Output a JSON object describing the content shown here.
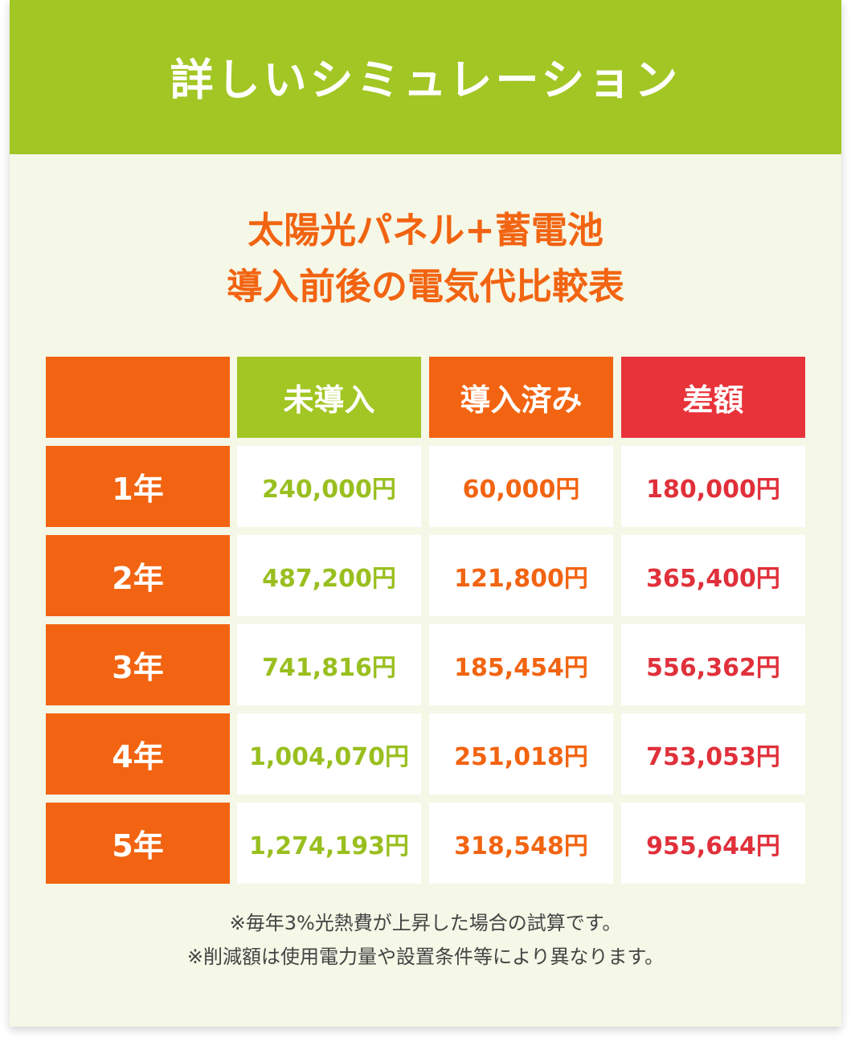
{
  "header": {
    "title": "詳しいシミュレーション"
  },
  "subtitle": {
    "line1": "太陽光パネル+蓄電池",
    "line2": "導入前後の電気代比較表"
  },
  "table": {
    "columns": [
      "",
      "未導入",
      "導入済み",
      "差額"
    ],
    "rows": [
      {
        "year": "1年",
        "before": "240,000円",
        "after": "60,000円",
        "diff": "180,000円"
      },
      {
        "year": "2年",
        "before": "487,200円",
        "after": "121,800円",
        "diff": "365,400円"
      },
      {
        "year": "3年",
        "before": "741,816円",
        "after": "185,454円",
        "diff": "556,362円"
      },
      {
        "year": "4年",
        "before": "1,004,070円",
        "after": "251,018円",
        "diff": "753,053円"
      },
      {
        "year": "5年",
        "before": "1,274,193円",
        "after": "318,548円",
        "diff": "955,644円"
      }
    ]
  },
  "notes": [
    "※毎年3%光熱費が上昇した場合の試算です。",
    "※削減額は使用電力量や設置条件等により異なります。"
  ],
  "colors": {
    "green": "#a2c623",
    "orange": "#f26411",
    "red": "#e8333a",
    "background": "#f5f7e7"
  }
}
